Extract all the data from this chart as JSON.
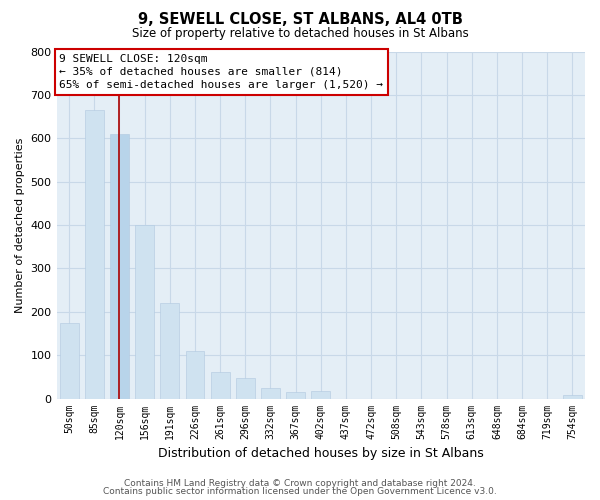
{
  "title": "9, SEWELL CLOSE, ST ALBANS, AL4 0TB",
  "subtitle": "Size of property relative to detached houses in St Albans",
  "xlabel": "Distribution of detached houses by size in St Albans",
  "ylabel": "Number of detached properties",
  "categories": [
    "50sqm",
    "85sqm",
    "120sqm",
    "156sqm",
    "191sqm",
    "226sqm",
    "261sqm",
    "296sqm",
    "332sqm",
    "367sqm",
    "402sqm",
    "437sqm",
    "472sqm",
    "508sqm",
    "543sqm",
    "578sqm",
    "613sqm",
    "648sqm",
    "684sqm",
    "719sqm",
    "754sqm"
  ],
  "values": [
    175,
    665,
    610,
    400,
    220,
    110,
    62,
    48,
    25,
    15,
    18,
    0,
    0,
    0,
    0,
    0,
    0,
    0,
    0,
    0,
    8
  ],
  "highlight_index": 2,
  "highlight_color": "#b8d4ea",
  "bar_color": "#cfe2f0",
  "highlight_line_color": "#aa0000",
  "annotation_line1": "9 SEWELL CLOSE: 120sqm",
  "annotation_line2": "← 35% of detached houses are smaller (814)",
  "annotation_line3": "65% of semi-detached houses are larger (1,520) →",
  "annotation_box_color": "#ffffff",
  "annotation_box_edge": "#cc0000",
  "ylim": [
    0,
    800
  ],
  "yticks": [
    0,
    100,
    200,
    300,
    400,
    500,
    600,
    700,
    800
  ],
  "footer1": "Contains HM Land Registry data © Crown copyright and database right 2024.",
  "footer2": "Contains public sector information licensed under the Open Government Licence v3.0.",
  "background_color": "#ffffff",
  "axes_bg_color": "#e4eef6",
  "grid_color": "#c8d8e8"
}
